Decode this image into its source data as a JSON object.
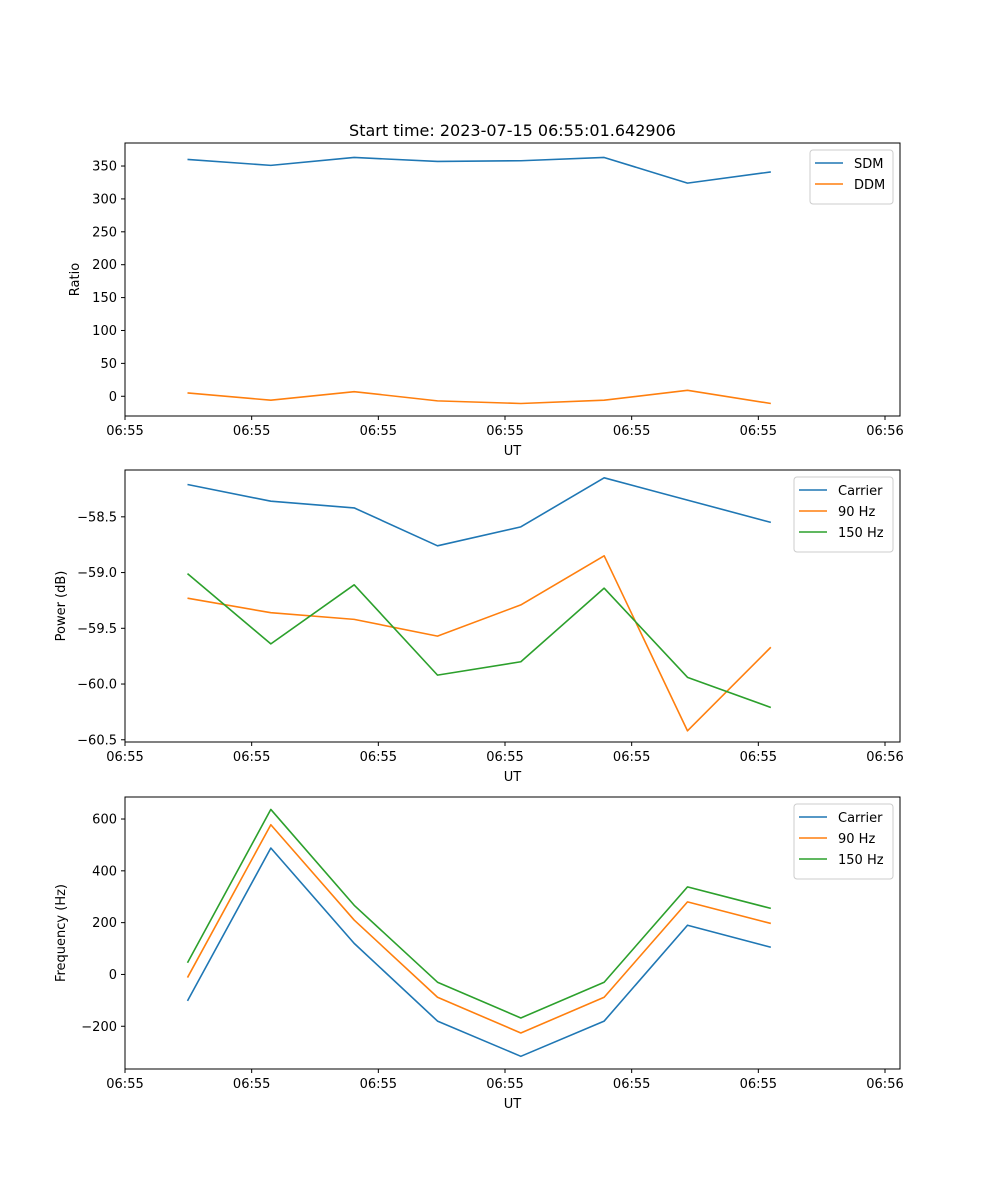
{
  "chart_data": [
    {
      "type": "line",
      "title": "Start time: 2023-07-15 06:55:01.642906",
      "xlabel": "UT",
      "ylabel": "Ratio",
      "xtick_labels": [
        "06:55",
        "06:55",
        "06:55",
        "06:55",
        "06:55",
        "06:55",
        "06:56"
      ],
      "xlim": [
        -0.75,
        8.55
      ],
      "ylim": [
        -30,
        385
      ],
      "yticks": [
        0,
        50,
        100,
        150,
        200,
        250,
        300,
        350
      ],
      "legend": "top-right",
      "x": [
        0,
        1,
        2,
        3,
        4,
        5,
        6,
        7
      ],
      "series": [
        {
          "name": "SDM",
          "color": "#1f77b4",
          "values": [
            360,
            351,
            363,
            357,
            358,
            363,
            324,
            341
          ]
        },
        {
          "name": "DDM",
          "color": "#ff7f0e",
          "values": [
            5,
            -6,
            7,
            -7,
            -11,
            -6,
            9,
            -11
          ]
        }
      ]
    },
    {
      "type": "line",
      "title": "",
      "xlabel": "UT",
      "ylabel": "Power (dB)",
      "xtick_labels": [
        "06:55",
        "06:55",
        "06:55",
        "06:55",
        "06:55",
        "06:55",
        "06:56"
      ],
      "xlim": [
        -0.75,
        8.55
      ],
      "ylim": [
        -60.52,
        -58.08
      ],
      "yticks": [
        -60.5,
        -60.0,
        -59.5,
        -59.0,
        -58.5
      ],
      "ytick_labels": [
        "−60.5",
        "−60.0",
        "−59.5",
        "−59.0",
        "−58.5"
      ],
      "legend": "top-right",
      "x": [
        0,
        1,
        2,
        3,
        4,
        5,
        6,
        7
      ],
      "series": [
        {
          "name": "Carrier",
          "color": "#1f77b4",
          "values": [
            -58.21,
            -58.36,
            -58.42,
            -58.76,
            -58.59,
            -58.15,
            -58.35,
            -58.55
          ]
        },
        {
          "name": "90 Hz",
          "color": "#ff7f0e",
          "values": [
            -59.23,
            -59.36,
            -59.42,
            -59.57,
            -59.29,
            -58.85,
            -60.42,
            -59.67
          ]
        },
        {
          "name": "150 Hz",
          "color": "#2ca02c",
          "values": [
            -59.01,
            -59.64,
            -59.11,
            -59.92,
            -59.8,
            -59.14,
            -59.94,
            -60.21
          ]
        }
      ]
    },
    {
      "type": "line",
      "title": "",
      "xlabel": "UT",
      "ylabel": "Frequency (Hz)",
      "xtick_labels": [
        "06:55",
        "06:55",
        "06:55",
        "06:55",
        "06:55",
        "06:55",
        "06:56"
      ],
      "xlim": [
        -0.75,
        8.55
      ],
      "ylim": [
        -365,
        685
      ],
      "yticks": [
        -200,
        0,
        200,
        400,
        600
      ],
      "ytick_labels": [
        "−200",
        "0",
        "200",
        "400",
        "600"
      ],
      "legend": "top-right",
      "x": [
        0,
        1,
        2,
        3,
        4,
        5,
        6,
        7
      ],
      "series": [
        {
          "name": "Carrier",
          "color": "#1f77b4",
          "values": [
            -102,
            488,
            120,
            -180,
            -316,
            -180,
            190,
            105
          ]
        },
        {
          "name": "90 Hz",
          "color": "#ff7f0e",
          "values": [
            -12,
            578,
            210,
            -88,
            -226,
            -88,
            280,
            197
          ]
        },
        {
          "name": "150 Hz",
          "color": "#2ca02c",
          "values": [
            45,
            637,
            267,
            -30,
            -168,
            -30,
            338,
            255
          ]
        }
      ]
    }
  ]
}
